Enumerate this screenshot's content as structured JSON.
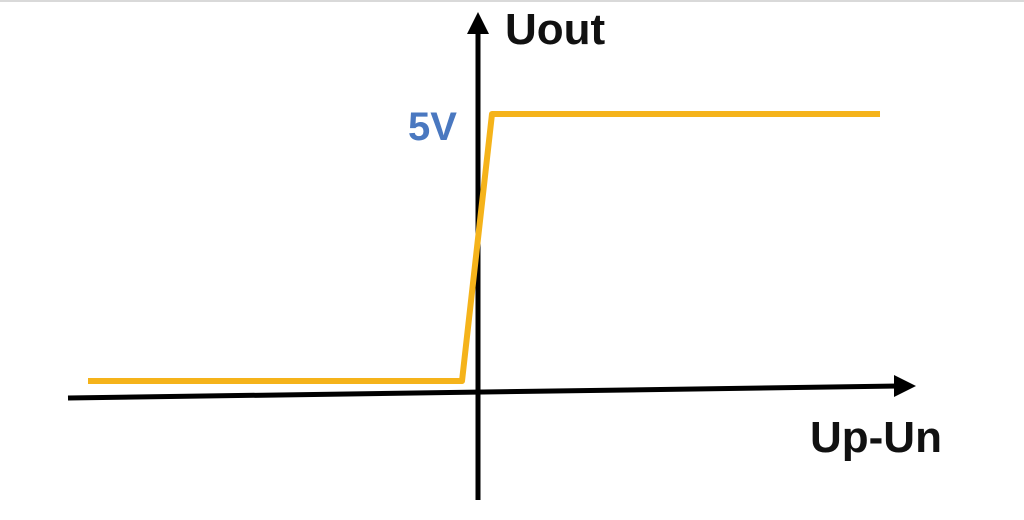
{
  "chart_data": {
    "type": "line",
    "xlabel": "Up-Un",
    "ylabel": "Uout",
    "series": [
      {
        "x": [
          -1,
          -0.06,
          0.06,
          1
        ],
        "y": [
          0,
          0,
          5,
          5
        ]
      }
    ],
    "xlim": [
      -1,
      1
    ],
    "ylim": [
      -0.3,
      5
    ],
    "y_tick_labels": [
      {
        "value": 5,
        "label": "5V"
      }
    ],
    "grid": false,
    "colors": {
      "series": "#f5b31a",
      "axes": "#000000",
      "tick_label": "#4a78c0"
    }
  }
}
